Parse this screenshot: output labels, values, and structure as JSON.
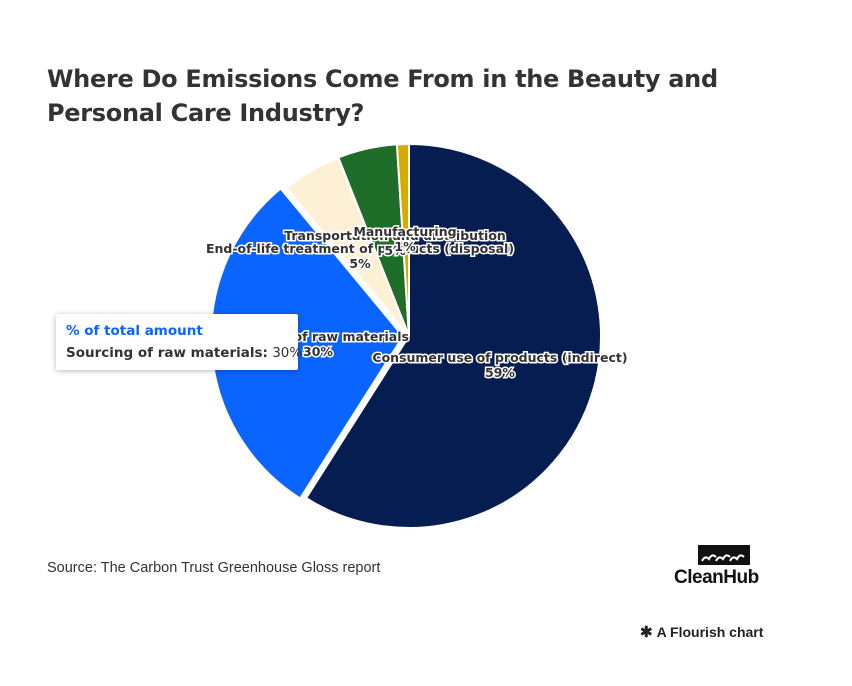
{
  "header": {
    "title": "Where Do Emissions Come From in the Beauty and Personal Care Industry?"
  },
  "chart_data": {
    "type": "pie",
    "title": "Where Do Emissions Come From in the Beauty and Personal Care Industry?",
    "unit": "% of total amount",
    "slices": [
      {
        "label": "Consumer use of products (indirect)",
        "value": 59,
        "value_label": "59%",
        "color": "#061d52"
      },
      {
        "label": "Sourcing of raw materials",
        "value": 30,
        "value_label": "30%",
        "color": "#0a64ff"
      },
      {
        "label": "End-of-life treatment of products (disposal)",
        "value": 5,
        "value_label": "5%",
        "color": "#fdf0d4"
      },
      {
        "label": "Transportation and distribution",
        "value": 5,
        "value_label": "5%",
        "color": "#1e6e2a"
      },
      {
        "label": "Manufacturing",
        "value": 1,
        "value_label": "1%",
        "color": "#d9a900"
      }
    ]
  },
  "tooltip": {
    "title": "% of total amount",
    "label": "Sourcing of raw materials:",
    "value": "30%"
  },
  "footer": {
    "source": "Source: The Carbon Trust Greenhouse Gloss report",
    "logo_text": "CleanHub",
    "flourish_text": "A Flourish chart",
    "flourish_icon": "asterisk-icon"
  }
}
